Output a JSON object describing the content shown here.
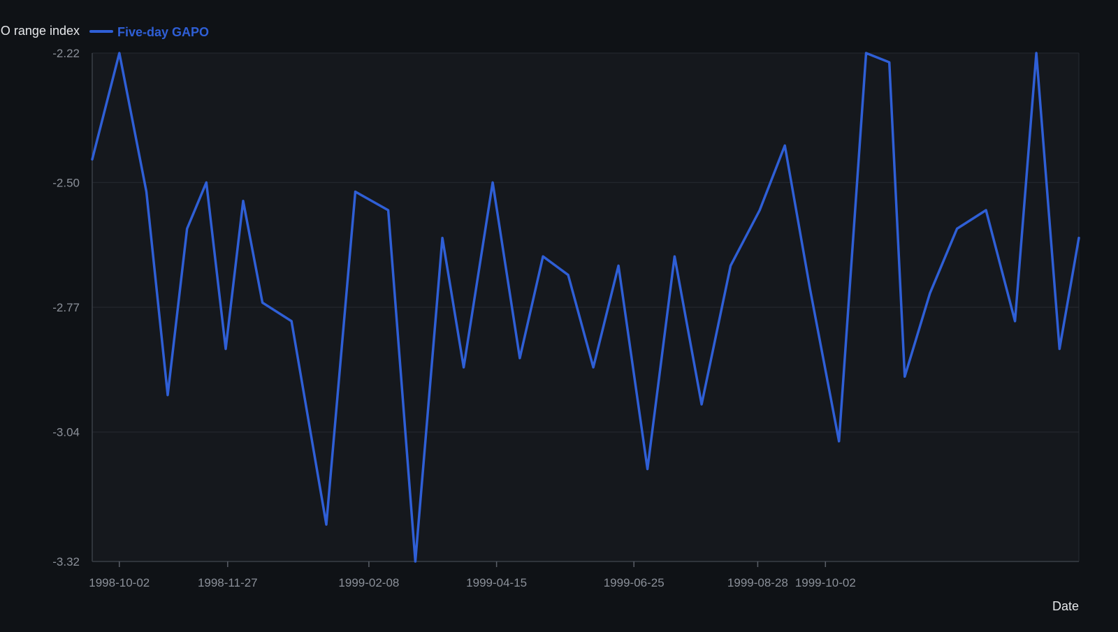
{
  "chart_data": {
    "type": "line",
    "xlabel": "Date",
    "ylabel": "GAPO range index",
    "ylim": [
      -3.32,
      -2.22
    ],
    "yticks": [
      "-2.22",
      "-2.50",
      "-2.77",
      "-3.04",
      "-3.32"
    ],
    "xticks": [
      "1998-10-02",
      "1998-11-27",
      "1999-02-08",
      "1999-04-15",
      "1999-06-25",
      "1999-08-28",
      "1999-10-02"
    ],
    "grid": true,
    "legend_position": "top-left",
    "series": [
      {
        "name": "Five-day GAPO",
        "color": "#2f5fd6",
        "points": [
          [
            "1998-09-18",
            -2.45
          ],
          [
            "1998-10-02",
            -2.22
          ],
          [
            "1998-10-16",
            -2.52
          ],
          [
            "1998-10-27",
            -2.96
          ],
          [
            "1998-11-06",
            -2.6
          ],
          [
            "1998-11-16",
            -2.5
          ],
          [
            "1998-11-26",
            -2.86
          ],
          [
            "1998-12-05",
            -2.54
          ],
          [
            "1998-12-15",
            -2.76
          ],
          [
            "1998-12-30",
            -2.8
          ],
          [
            "1999-01-17",
            -3.24
          ],
          [
            "1999-02-01",
            -2.52
          ],
          [
            "1999-02-18",
            -2.56
          ],
          [
            "1999-03-04",
            -3.32
          ],
          [
            "1999-03-18",
            -2.62
          ],
          [
            "1999-03-29",
            -2.9
          ],
          [
            "1999-04-13",
            -2.5
          ],
          [
            "1999-04-27",
            -2.88
          ],
          [
            "1999-05-09",
            -2.66
          ],
          [
            "1999-05-22",
            -2.7
          ],
          [
            "1999-06-04",
            -2.9
          ],
          [
            "1999-06-17",
            -2.68
          ],
          [
            "1999-07-02",
            -3.12
          ],
          [
            "1999-07-16",
            -2.66
          ],
          [
            "1999-07-30",
            -2.98
          ],
          [
            "1999-08-14",
            -2.68
          ],
          [
            "1999-08-29",
            -2.56
          ],
          [
            "1999-09-11",
            -2.42
          ],
          [
            "1999-09-24",
            -2.73
          ],
          [
            "1999-10-09",
            -3.06
          ],
          [
            "1999-10-23",
            -2.22
          ],
          [
            "1999-11-04",
            -2.24
          ],
          [
            "1999-11-12",
            -2.92
          ],
          [
            "1999-11-25",
            -2.74
          ],
          [
            "1999-12-09",
            -2.6
          ],
          [
            "1999-12-24",
            -2.56
          ],
          [
            "2000-01-08",
            -2.8
          ],
          [
            "2000-01-19",
            -2.22
          ],
          [
            "2000-01-31",
            -2.86
          ],
          [
            "2000-02-10",
            -2.62
          ]
        ]
      }
    ]
  }
}
